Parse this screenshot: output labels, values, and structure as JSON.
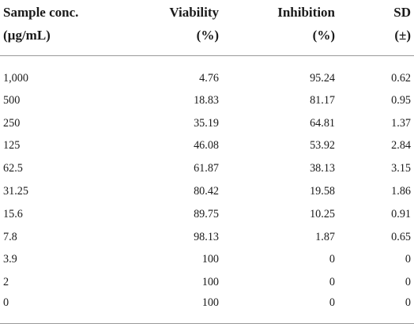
{
  "table": {
    "headers": [
      {
        "line1": "Sample conc.",
        "line2": "(µg/mL)"
      },
      {
        "line1": "Viability",
        "line2": "(%)"
      },
      {
        "line1": "Inhibition",
        "line2": "(%)"
      },
      {
        "line1": "SD",
        "line2": "(±)"
      }
    ],
    "rows": [
      [
        "1,000",
        "4.76",
        "95.24",
        "0.62"
      ],
      [
        "500",
        "18.83",
        "81.17",
        "0.95"
      ],
      [
        "250",
        "35.19",
        "64.81",
        "1.37"
      ],
      [
        "125",
        "46.08",
        "53.92",
        "2.84"
      ],
      [
        "62.5",
        "61.87",
        "38.13",
        "3.15"
      ],
      [
        "31.25",
        "80.42",
        "19.58",
        "1.86"
      ],
      [
        "15.6",
        "89.75",
        "10.25",
        "0.91"
      ],
      [
        "7.8",
        "98.13",
        "1.87",
        "0.65"
      ],
      [
        "3.9",
        "100",
        "0",
        "0"
      ],
      [
        "2",
        "100",
        "0",
        "0"
      ],
      [
        "0",
        "100",
        "0",
        "0"
      ]
    ]
  }
}
